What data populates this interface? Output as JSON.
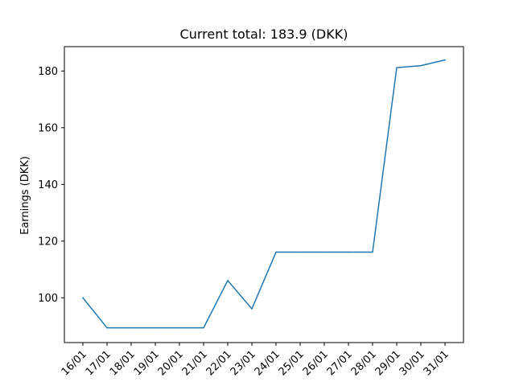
{
  "chart_data": {
    "type": "line",
    "title": "Current total: 183.9 (DKK)",
    "xlabel": "",
    "ylabel": "Earnings (DKK)",
    "categories": [
      "16/01",
      "17/01",
      "18/01",
      "19/01",
      "20/01",
      "21/01",
      "22/01",
      "23/01",
      "24/01",
      "25/01",
      "26/01",
      "27/01",
      "28/01",
      "29/01",
      "30/01",
      "31/01"
    ],
    "series": [
      {
        "values": [
          100.0,
          89.4,
          89.4,
          89.4,
          89.4,
          89.4,
          106.1,
          96.1,
          116.1,
          116.1,
          116.1,
          116.1,
          116.1,
          181.2,
          181.9,
          183.9
        ],
        "color": "#1f77b4"
      }
    ],
    "yticks": [
      100,
      120,
      140,
      160,
      180
    ],
    "ylim": [
      84.2,
      188.6
    ],
    "grid": false,
    "legend": "none"
  }
}
